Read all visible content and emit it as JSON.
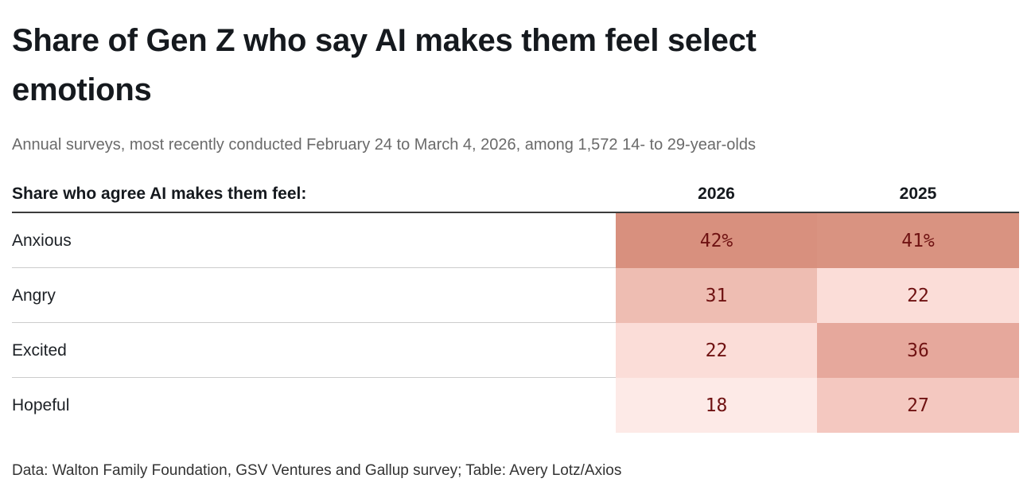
{
  "header": {
    "title": "Share of Gen Z who say AI makes them feel select emotions",
    "subtitle": "Annual surveys, most recently conducted February 24 to March 4, 2026, among 1,572 14- to 29-year-olds"
  },
  "table": {
    "corner_label": "Share who agree AI makes them feel:",
    "columns": [
      "2026",
      "2025"
    ],
    "rows": [
      {
        "label": "Anxious",
        "values": [
          "42%",
          "41%"
        ],
        "colors": [
          "#d8907e",
          "#d99381"
        ]
      },
      {
        "label": "Angry",
        "values": [
          "31",
          "22"
        ],
        "colors": [
          "#eebdb2",
          "#fbddd8"
        ]
      },
      {
        "label": "Excited",
        "values": [
          "22",
          "36"
        ],
        "colors": [
          "#fbddd8",
          "#e6a89c"
        ]
      },
      {
        "label": "Hopeful",
        "values": [
          "18",
          "27"
        ],
        "colors": [
          "#fdeae7",
          "#f4c8c0"
        ]
      }
    ]
  },
  "footer": {
    "credit": "Data: Walton Family Foundation, GSV Ventures and Gallup survey; Table: Avery Lotz/Axios"
  },
  "colors": {
    "value_text": "#6f1212",
    "header_rule": "#3b3b3b",
    "heat_high": "#d8907e",
    "heat_low": "#fdeae7"
  },
  "chart_data": {
    "type": "heatmap",
    "title": "Share of Gen Z who say AI makes them feel select emotions",
    "subtitle": "Annual surveys, most recently conducted February 24 to March 4, 2026, among 1,572 14- to 29-year-olds",
    "row_header": "Share who agree AI makes them feel:",
    "categories": [
      "Anxious",
      "Angry",
      "Excited",
      "Hopeful"
    ],
    "series": [
      {
        "name": "2026",
        "values": [
          42,
          31,
          22,
          18
        ]
      },
      {
        "name": "2025",
        "values": [
          41,
          22,
          36,
          27
        ]
      }
    ],
    "unit": "percent",
    "value_range": [
      18,
      42
    ],
    "color_scale": {
      "low": "#fdeae7",
      "high": "#d8907e"
    },
    "legend_position": "none",
    "source": "Data: Walton Family Foundation, GSV Ventures and Gallup survey; Table: Avery Lotz/Axios"
  }
}
